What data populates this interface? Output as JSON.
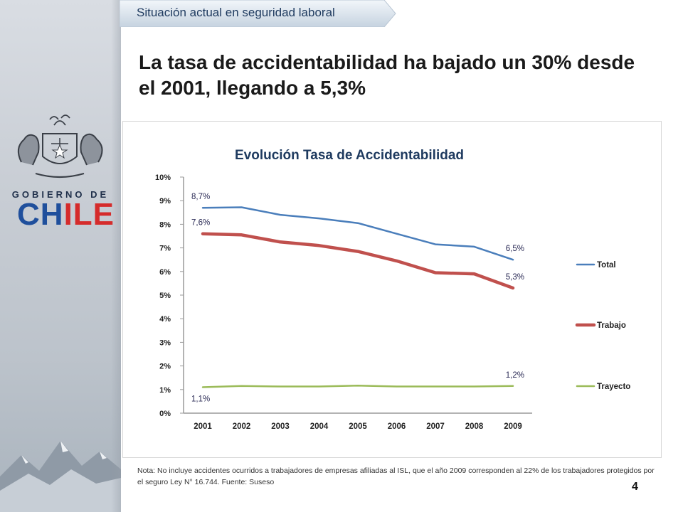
{
  "header": {
    "tab_label": "Situación actual en seguridad laboral",
    "headline": "La tasa de accidentabilidad ha bajado un 30% desde el 2001, llegando a 5,3%"
  },
  "logo": {
    "line1": "GOBIERNO DE",
    "line2_a": "CH",
    "line2_b": "ILE"
  },
  "colors": {
    "total": "#4a7ebb",
    "trabajo": "#c0504d",
    "trayecto": "#9bbb59",
    "title": "#1e3a5f"
  },
  "chart_data": {
    "type": "line",
    "title": "Evolución Tasa de Accidentabilidad",
    "xlabel": "",
    "ylabel": "",
    "ylim": [
      0,
      10
    ],
    "y_ticks": [
      "0%",
      "1%",
      "2%",
      "3%",
      "4%",
      "5%",
      "6%",
      "7%",
      "8%",
      "9%",
      "10%"
    ],
    "categories": [
      "2001",
      "2002",
      "2003",
      "2004",
      "2005",
      "2006",
      "2007",
      "2008",
      "2009"
    ],
    "series": [
      {
        "name": "Total",
        "color": "#4a7ebb",
        "width": 2.5,
        "values": [
          8.7,
          8.72,
          8.4,
          8.25,
          8.05,
          7.6,
          7.15,
          7.05,
          6.5
        ]
      },
      {
        "name": "Trabajo",
        "color": "#c0504d",
        "width": 4.5,
        "values": [
          7.6,
          7.55,
          7.25,
          7.1,
          6.85,
          6.45,
          5.95,
          5.9,
          5.3
        ]
      },
      {
        "name": "Trayecto",
        "color": "#9bbb59",
        "width": 2.5,
        "values": [
          1.1,
          1.15,
          1.13,
          1.13,
          1.17,
          1.13,
          1.13,
          1.13,
          1.15
        ]
      }
    ],
    "data_labels": [
      {
        "text": "8,7%",
        "series": 0,
        "index": 0,
        "pos": "above"
      },
      {
        "text": "7,6%",
        "series": 1,
        "index": 0,
        "pos": "above"
      },
      {
        "text": "1,1%",
        "series": 2,
        "index": 0,
        "pos": "below"
      },
      {
        "text": "6,5%",
        "series": 0,
        "index": 8,
        "pos": "above"
      },
      {
        "text": "5,3%",
        "series": 1,
        "index": 8,
        "pos": "above"
      },
      {
        "text": "1,2%",
        "series": 2,
        "index": 8,
        "pos": "above"
      }
    ],
    "legend": [
      "Total",
      "Trabajo",
      "Trayecto"
    ],
    "legend_position": "right",
    "grid": false
  },
  "footer": {
    "note": "Nota: No incluye accidentes ocurridos a trabajadores de empresas afiliadas al ISL, que el año 2009 corresponden al 22% de los trabajadores protegidos por el seguro Ley N° 16.744. Fuente: Suseso",
    "page_number": "4"
  }
}
